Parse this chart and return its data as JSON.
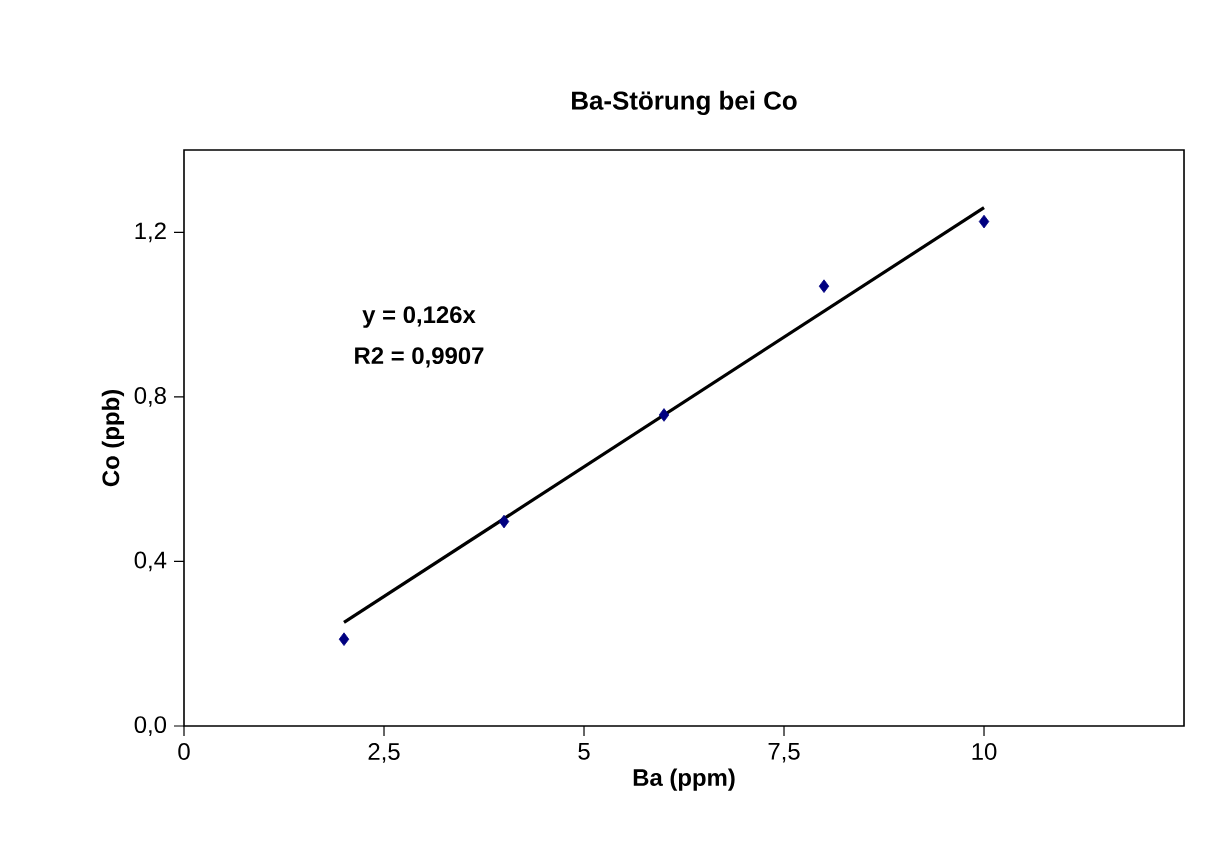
{
  "chart_data": {
    "type": "scatter",
    "title": "Ba-Störung bei Co",
    "xlabel": "Ba (ppm)",
    "ylabel": "Co (ppb)",
    "annotations": [
      "y = 0,126x",
      "R2 = 0,9907"
    ],
    "x": [
      2,
      4,
      6,
      8,
      10
    ],
    "series": [
      {
        "color": "#000080",
        "marker": "diamond",
        "values": [
          0.211,
          0.497,
          0.756,
          1.069,
          1.226
        ]
      },
      {
        "type": "line",
        "color": "#000000",
        "marker": "none",
        "x": [
          2,
          10
        ],
        "values": [
          0.252,
          1.26
        ]
      }
    ],
    "xlim": [
      0,
      12.5
    ],
    "ylim": [
      0,
      1.4
    ],
    "xticks": [
      0,
      {
        "value": 2.5,
        "label": "2,5"
      },
      5,
      {
        "value": 7.5,
        "label": "7,5"
      },
      10
    ],
    "yticks": [
      {
        "value": 0,
        "label": "0,0"
      },
      {
        "value": 0.4,
        "label": "0,4"
      },
      {
        "value": 0.8,
        "label": "0,8"
      },
      {
        "value": 1.2,
        "label": "1,2"
      }
    ]
  }
}
